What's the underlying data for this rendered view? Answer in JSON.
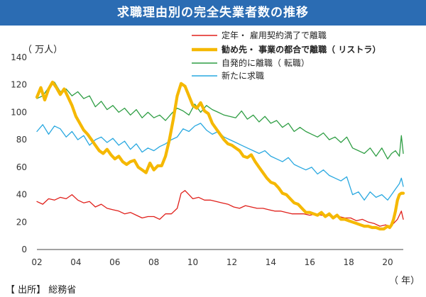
{
  "title": "求職理由別の完全失業者数の推移",
  "unit_label": "（ 万人）",
  "x_unit_label": "（ 年）",
  "source": "【 出所】 総務省",
  "chart_data": {
    "type": "line",
    "ylim": [
      0,
      140
    ],
    "yticks": [
      0,
      20,
      40,
      60,
      80,
      100,
      120,
      140
    ],
    "xlim": [
      2002,
      2020.8
    ],
    "xticks": [
      2002,
      2004,
      2006,
      2008,
      2010,
      2012,
      2014,
      2016,
      2018,
      2020
    ],
    "xtick_labels": [
      "02",
      "04",
      "06",
      "08",
      "10",
      "12",
      "14",
      "16",
      "18",
      "20"
    ],
    "legend_position": "top-right",
    "grid": false,
    "series": [
      {
        "name": "定年・ 雇用契約満了で離職",
        "color": "#e0201b",
        "x": [
          2002.0,
          2002.3,
          2002.6,
          2002.9,
          2003.2,
          2003.5,
          2003.8,
          2004.1,
          2004.4,
          2004.7,
          2005.0,
          2005.3,
          2005.6,
          2005.9,
          2006.2,
          2006.5,
          2006.8,
          2007.1,
          2007.4,
          2007.7,
          2008.0,
          2008.3,
          2008.6,
          2008.9,
          2009.2,
          2009.4,
          2009.6,
          2009.8,
          2010.0,
          2010.3,
          2010.6,
          2010.9,
          2011.2,
          2011.5,
          2011.8,
          2012.1,
          2012.4,
          2012.7,
          2013.0,
          2013.3,
          2013.6,
          2013.9,
          2014.2,
          2014.5,
          2014.8,
          2015.1,
          2015.4,
          2015.7,
          2016.0,
          2016.3,
          2016.6,
          2016.9,
          2017.2,
          2017.5,
          2017.8,
          2018.1,
          2018.4,
          2018.7,
          2019.0,
          2019.3,
          2019.6,
          2019.9,
          2020.1,
          2020.3,
          2020.5,
          2020.7,
          2020.8
        ],
        "values": [
          35,
          33,
          37,
          36,
          38,
          37,
          40,
          36,
          34,
          35,
          31,
          33,
          30,
          29,
          28,
          26,
          27,
          25,
          23,
          24,
          24,
          22,
          26,
          26,
          30,
          41,
          43,
          40,
          37,
          38,
          36,
          36,
          35,
          34,
          33,
          31,
          30,
          32,
          31,
          30,
          30,
          29,
          28,
          28,
          27,
          26,
          26,
          26,
          25,
          26,
          25,
          25,
          24,
          24,
          23,
          23,
          21,
          22,
          20,
          19,
          17,
          18,
          16,
          19,
          22,
          28,
          22
        ]
      },
      {
        "name": "勧め先・ 事業の都合で離職（ リストラ）",
        "color": "#f5b800",
        "x": [
          2002.0,
          2002.2,
          2002.4,
          2002.6,
          2002.8,
          2003.0,
          2003.2,
          2003.4,
          2003.6,
          2003.8,
          2004.0,
          2004.2,
          2004.4,
          2004.6,
          2004.8,
          2005.0,
          2005.2,
          2005.4,
          2005.6,
          2005.8,
          2006.0,
          2006.2,
          2006.4,
          2006.6,
          2006.8,
          2007.0,
          2007.2,
          2007.4,
          2007.6,
          2007.8,
          2008.0,
          2008.2,
          2008.4,
          2008.6,
          2008.8,
          2009.0,
          2009.2,
          2009.4,
          2009.6,
          2009.8,
          2010.0,
          2010.2,
          2010.4,
          2010.6,
          2010.8,
          2011.0,
          2011.2,
          2011.4,
          2011.6,
          2011.8,
          2012.0,
          2012.2,
          2012.4,
          2012.6,
          2012.8,
          2013.0,
          2013.2,
          2013.4,
          2013.6,
          2013.8,
          2014.0,
          2014.2,
          2014.4,
          2014.6,
          2014.8,
          2015.0,
          2015.2,
          2015.4,
          2015.6,
          2015.8,
          2016.0,
          2016.2,
          2016.4,
          2016.6,
          2016.8,
          2017.0,
          2017.2,
          2017.4,
          2017.6,
          2017.8,
          2018.0,
          2018.2,
          2018.4,
          2018.6,
          2018.8,
          2019.0,
          2019.2,
          2019.4,
          2019.6,
          2019.8,
          2020.0,
          2020.1,
          2020.2,
          2020.3,
          2020.4,
          2020.5,
          2020.6,
          2020.7,
          2020.8
        ],
        "values": [
          111,
          118,
          109,
          117,
          122,
          118,
          113,
          117,
          111,
          105,
          97,
          92,
          87,
          84,
          80,
          76,
          72,
          70,
          73,
          69,
          66,
          68,
          64,
          62,
          64,
          65,
          60,
          58,
          56,
          63,
          58,
          61,
          61,
          68,
          80,
          95,
          112,
          121,
          119,
          112,
          105,
          103,
          107,
          101,
          99,
          92,
          88,
          84,
          80,
          77,
          76,
          74,
          72,
          68,
          67,
          69,
          64,
          60,
          56,
          52,
          49,
          48,
          45,
          41,
          40,
          37,
          34,
          33,
          30,
          27,
          27,
          26,
          25,
          27,
          24,
          26,
          23,
          25,
          22,
          22,
          21,
          20,
          19,
          18,
          17,
          17,
          16,
          16,
          15,
          15,
          17,
          16,
          18,
          22,
          28,
          36,
          40,
          41,
          41
        ]
      },
      {
        "name": "自発的に離職（ 転職）",
        "color": "#2f9e44",
        "x": [
          2002.0,
          2002.3,
          2002.6,
          2002.9,
          2003.2,
          2003.5,
          2003.8,
          2004.1,
          2004.4,
          2004.7,
          2005.0,
          2005.3,
          2005.6,
          2005.9,
          2006.2,
          2006.5,
          2006.8,
          2007.1,
          2007.4,
          2007.7,
          2008.0,
          2008.3,
          2008.6,
          2008.9,
          2009.2,
          2009.5,
          2009.8,
          2010.1,
          2010.4,
          2010.7,
          2011.0,
          2011.3,
          2011.6,
          2011.9,
          2012.2,
          2012.5,
          2012.8,
          2013.1,
          2013.4,
          2013.7,
          2014.0,
          2014.3,
          2014.6,
          2014.9,
          2015.2,
          2015.5,
          2015.8,
          2016.1,
          2016.4,
          2016.7,
          2017.0,
          2017.3,
          2017.6,
          2017.9,
          2018.2,
          2018.5,
          2018.8,
          2019.1,
          2019.4,
          2019.7,
          2020.0,
          2020.2,
          2020.4,
          2020.6,
          2020.7,
          2020.8
        ],
        "values": [
          110,
          112,
          118,
          122,
          115,
          117,
          112,
          115,
          110,
          112,
          104,
          108,
          102,
          105,
          100,
          103,
          98,
          102,
          96,
          100,
          96,
          98,
          94,
          99,
          103,
          101,
          98,
          106,
          100,
          105,
          102,
          100,
          98,
          97,
          96,
          101,
          95,
          98,
          93,
          97,
          92,
          94,
          89,
          92,
          86,
          89,
          86,
          84,
          82,
          85,
          80,
          82,
          78,
          82,
          74,
          72,
          70,
          74,
          68,
          74,
          66,
          70,
          72,
          68,
          83,
          70
        ]
      },
      {
        "name": "新たに求職",
        "color": "#29a8e0",
        "x": [
          2002.0,
          2002.3,
          2002.6,
          2002.9,
          2003.2,
          2003.5,
          2003.8,
          2004.1,
          2004.4,
          2004.7,
          2005.0,
          2005.3,
          2005.6,
          2005.9,
          2006.2,
          2006.5,
          2006.8,
          2007.1,
          2007.4,
          2007.7,
          2008.0,
          2008.3,
          2008.6,
          2008.9,
          2009.2,
          2009.5,
          2009.8,
          2010.1,
          2010.4,
          2010.7,
          2011.0,
          2011.3,
          2011.6,
          2011.9,
          2012.2,
          2012.5,
          2012.8,
          2013.1,
          2013.4,
          2013.7,
          2014.0,
          2014.3,
          2014.6,
          2014.9,
          2015.2,
          2015.5,
          2015.8,
          2016.1,
          2016.4,
          2016.7,
          2017.0,
          2017.3,
          2017.6,
          2017.9,
          2018.2,
          2018.5,
          2018.8,
          2019.1,
          2019.4,
          2019.7,
          2020.0,
          2020.2,
          2020.4,
          2020.6,
          2020.7,
          2020.8
        ],
        "values": [
          86,
          91,
          84,
          90,
          88,
          82,
          86,
          80,
          83,
          76,
          80,
          82,
          78,
          81,
          76,
          79,
          73,
          77,
          71,
          74,
          72,
          75,
          77,
          80,
          82,
          88,
          86,
          90,
          92,
          87,
          84,
          86,
          82,
          80,
          78,
          76,
          74,
          72,
          70,
          72,
          68,
          66,
          64,
          67,
          62,
          60,
          58,
          60,
          55,
          58,
          54,
          52,
          50,
          53,
          40,
          42,
          36,
          42,
          38,
          40,
          36,
          40,
          44,
          48,
          52,
          46
        ]
      }
    ]
  }
}
